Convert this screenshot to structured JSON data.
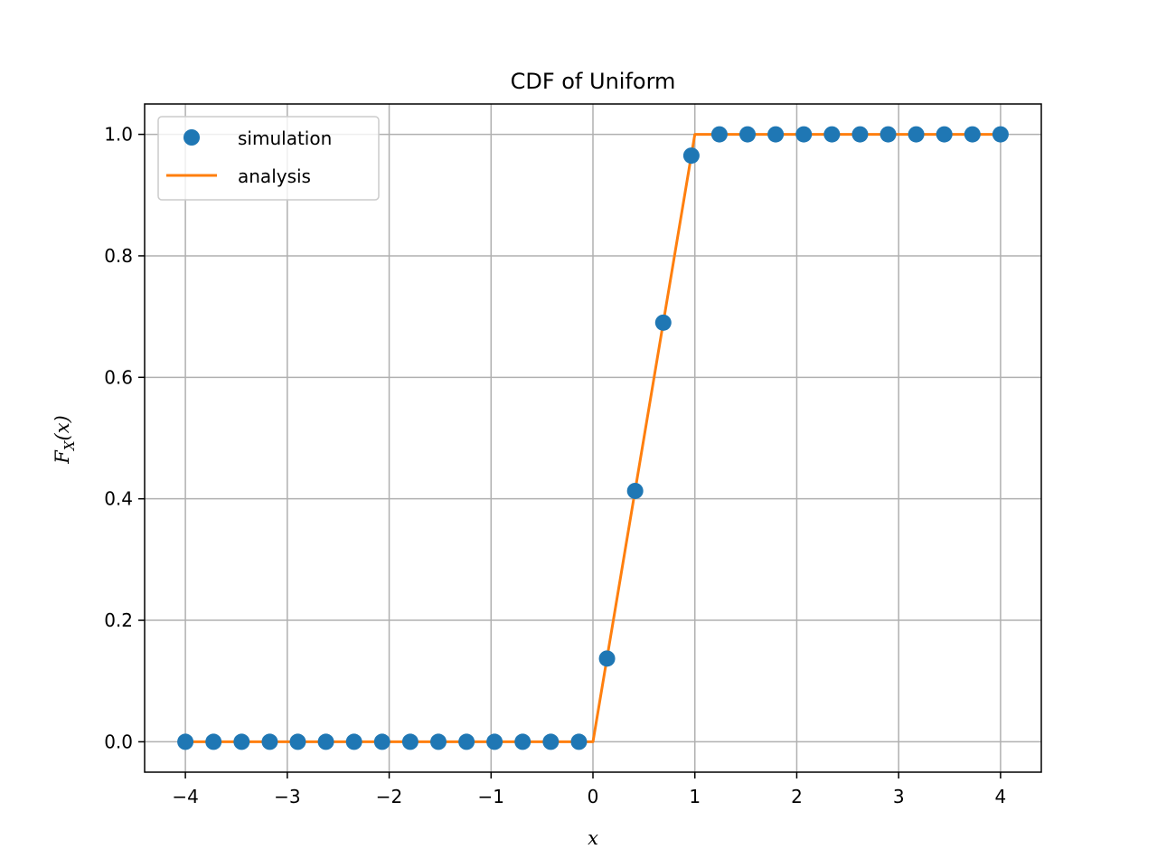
{
  "chart_data": {
    "type": "line",
    "title": "CDF of Uniform",
    "xlabel": "x",
    "ylabel": "F_X(x)",
    "ylabel_main": "F",
    "ylabel_sub": "X",
    "ylabel_arg": "(x)",
    "xlim": [
      -4.4,
      4.4
    ],
    "ylim": [
      -0.05,
      1.05
    ],
    "xticks": [
      -4,
      -3,
      -2,
      -1,
      0,
      1,
      2,
      3,
      4
    ],
    "xtick_labels": [
      "−4",
      "−3",
      "−2",
      "−1",
      "0",
      "1",
      "2",
      "3",
      "4"
    ],
    "yticks": [
      0.0,
      0.2,
      0.4,
      0.6,
      0.8,
      1.0
    ],
    "ytick_labels": [
      "0.0",
      "0.2",
      "0.4",
      "0.6",
      "0.8",
      "1.0"
    ],
    "grid": true,
    "legend_position": "upper-left",
    "series": [
      {
        "name": "simulation",
        "kind": "scatter",
        "color": "#1f77b4",
        "x": [
          -4.0,
          -3.724,
          -3.448,
          -3.172,
          -2.897,
          -2.621,
          -2.345,
          -2.069,
          -1.793,
          -1.517,
          -1.241,
          -0.966,
          -0.69,
          -0.414,
          -0.138,
          0.138,
          0.414,
          0.69,
          0.966,
          1.241,
          1.517,
          1.793,
          2.069,
          2.345,
          2.621,
          2.897,
          3.172,
          3.448,
          3.724,
          4.0
        ],
        "y": [
          0,
          0,
          0,
          0,
          0,
          0,
          0,
          0,
          0,
          0,
          0,
          0,
          0,
          0,
          0,
          0.137,
          0.413,
          0.69,
          0.965,
          1,
          1,
          1,
          1,
          1,
          1,
          1,
          1,
          1,
          1,
          1
        ]
      },
      {
        "name": "analysis",
        "kind": "line",
        "color": "#ff7f0e",
        "x": [
          -4,
          0,
          1,
          4
        ],
        "y": [
          0,
          0,
          1,
          1
        ]
      }
    ]
  }
}
